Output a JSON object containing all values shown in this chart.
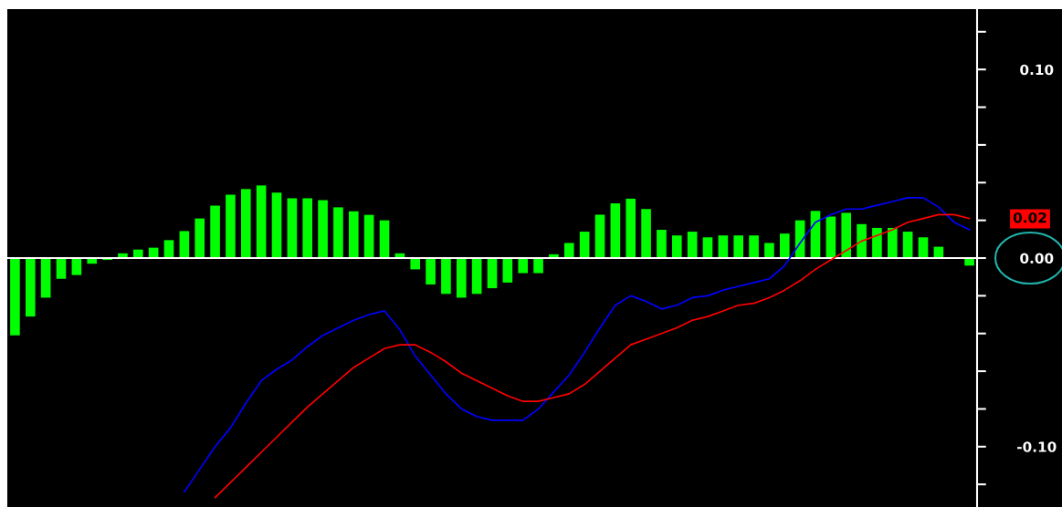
{
  "chart_data": {
    "type": "bar",
    "categories": [
      null,
      null,
      null,
      null,
      null,
      null,
      null,
      null,
      null,
      null,
      null,
      null,
      null,
      null,
      null,
      null,
      null,
      null,
      null,
      null,
      null,
      null,
      null,
      null,
      null,
      null,
      null,
      null,
      null,
      null,
      null,
      null,
      null,
      null,
      null,
      null,
      null,
      null,
      null,
      null,
      null,
      null,
      null,
      null,
      null,
      null,
      null,
      null,
      null,
      null,
      null,
      null,
      null,
      null,
      null,
      null,
      null,
      null,
      null,
      null,
      null,
      null,
      null
    ],
    "series": [
      {
        "color": "#00ff00",
        "values": [
          -0.041,
          -0.031,
          -0.021,
          -0.011,
          -0.009,
          -0.003,
          -0.001,
          0.0025,
          0.0045,
          0.0055,
          0.0095,
          0.0143,
          0.021,
          0.0278,
          0.0336,
          0.0366,
          0.0385,
          0.0347,
          0.0317,
          0.0317,
          0.0307,
          0.0269,
          0.0248,
          0.0229,
          0.02,
          0.0025,
          -0.006,
          -0.014,
          -0.019,
          -0.021,
          -0.019,
          -0.016,
          -0.013,
          -0.008,
          -0.008,
          0.002,
          0.008,
          0.014,
          0.023,
          0.029,
          0.0315,
          0.026,
          0.015,
          0.012,
          0.014,
          0.011,
          0.012,
          0.012,
          0.012,
          0.008,
          0.013,
          0.02,
          0.025,
          0.022,
          0.024,
          0.018,
          0.016,
          0.016,
          0.014,
          0.011,
          0.006,
          0.0,
          -0.004
        ]
      },
      {
        "type": "line",
        "color": "#0000ff",
        "values": [
          null,
          null,
          null,
          null,
          null,
          null,
          null,
          null,
          null,
          null,
          null,
          -0.124,
          -0.112,
          -0.1,
          -0.09,
          -0.077,
          -0.065,
          -0.059,
          -0.054,
          -0.047,
          -0.041,
          -0.037,
          -0.033,
          -0.03,
          -0.028,
          -0.038,
          -0.052,
          -0.062,
          -0.072,
          -0.08,
          -0.084,
          -0.086,
          -0.086,
          -0.086,
          -0.08,
          -0.071,
          -0.062,
          -0.05,
          -0.037,
          -0.025,
          -0.02,
          -0.023,
          -0.027,
          -0.025,
          -0.021,
          -0.02,
          -0.017,
          -0.015,
          -0.013,
          -0.011,
          -0.004,
          0.008,
          0.019,
          0.023,
          0.026,
          0.026,
          0.028,
          0.03,
          0.032,
          0.032,
          0.027,
          0.019,
          0.015
        ]
      },
      {
        "type": "line",
        "color": "#ff0000",
        "values": [
          null,
          null,
          null,
          null,
          null,
          null,
          null,
          null,
          null,
          null,
          null,
          null,
          null,
          -0.127,
          -0.119,
          -0.111,
          -0.103,
          -0.095,
          -0.087,
          -0.079,
          -0.072,
          -0.065,
          -0.058,
          -0.053,
          -0.048,
          -0.046,
          -0.046,
          -0.05,
          -0.055,
          -0.061,
          -0.065,
          -0.069,
          -0.073,
          -0.076,
          -0.076,
          -0.074,
          -0.072,
          -0.067,
          -0.06,
          -0.053,
          -0.046,
          -0.043,
          -0.04,
          -0.037,
          -0.033,
          -0.031,
          -0.028,
          -0.025,
          -0.024,
          -0.021,
          -0.017,
          -0.012,
          -0.006,
          -0.001,
          0.004,
          0.009,
          0.012,
          0.015,
          0.019,
          0.021,
          0.023,
          0.023,
          0.021
        ]
      }
    ],
    "ylim": [
      -0.132,
      0.132
    ],
    "yticks": [
      {
        "value": -0.12,
        "label": null
      },
      {
        "value": -0.1,
        "label": "-0.10"
      },
      {
        "value": -0.08,
        "label": null
      },
      {
        "value": -0.06,
        "label": null
      },
      {
        "value": -0.04,
        "label": null
      },
      {
        "value": -0.02,
        "label": null
      },
      {
        "value": 0.0,
        "label": "0.00"
      },
      {
        "value": 0.02,
        "label": null
      },
      {
        "value": 0.04,
        "label": null
      },
      {
        "value": 0.06,
        "label": null
      },
      {
        "value": 0.08,
        "label": null
      },
      {
        "value": 0.1,
        "label": "0.10"
      },
      {
        "value": 0.12,
        "label": null
      }
    ],
    "ref_lines": [
      {
        "axis": "y",
        "value": 0.0,
        "color": "#ffffff"
      }
    ],
    "annotations": [
      "0.02"
    ],
    "tick_labels": "y"
  }
}
